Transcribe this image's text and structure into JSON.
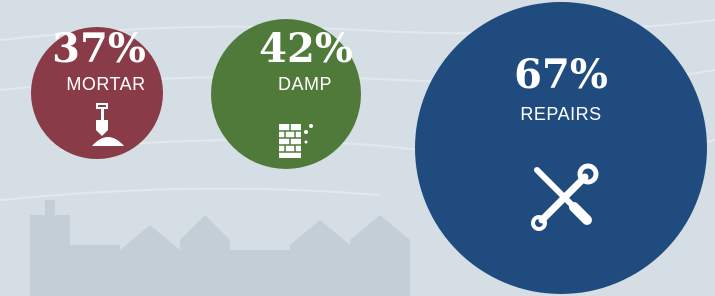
{
  "items": [
    {
      "percent": "37%",
      "label": "MORTAR"
    },
    {
      "percent": "42%",
      "label": "DAMP"
    },
    {
      "percent": "67%",
      "label": "REPAIRS"
    }
  ]
}
